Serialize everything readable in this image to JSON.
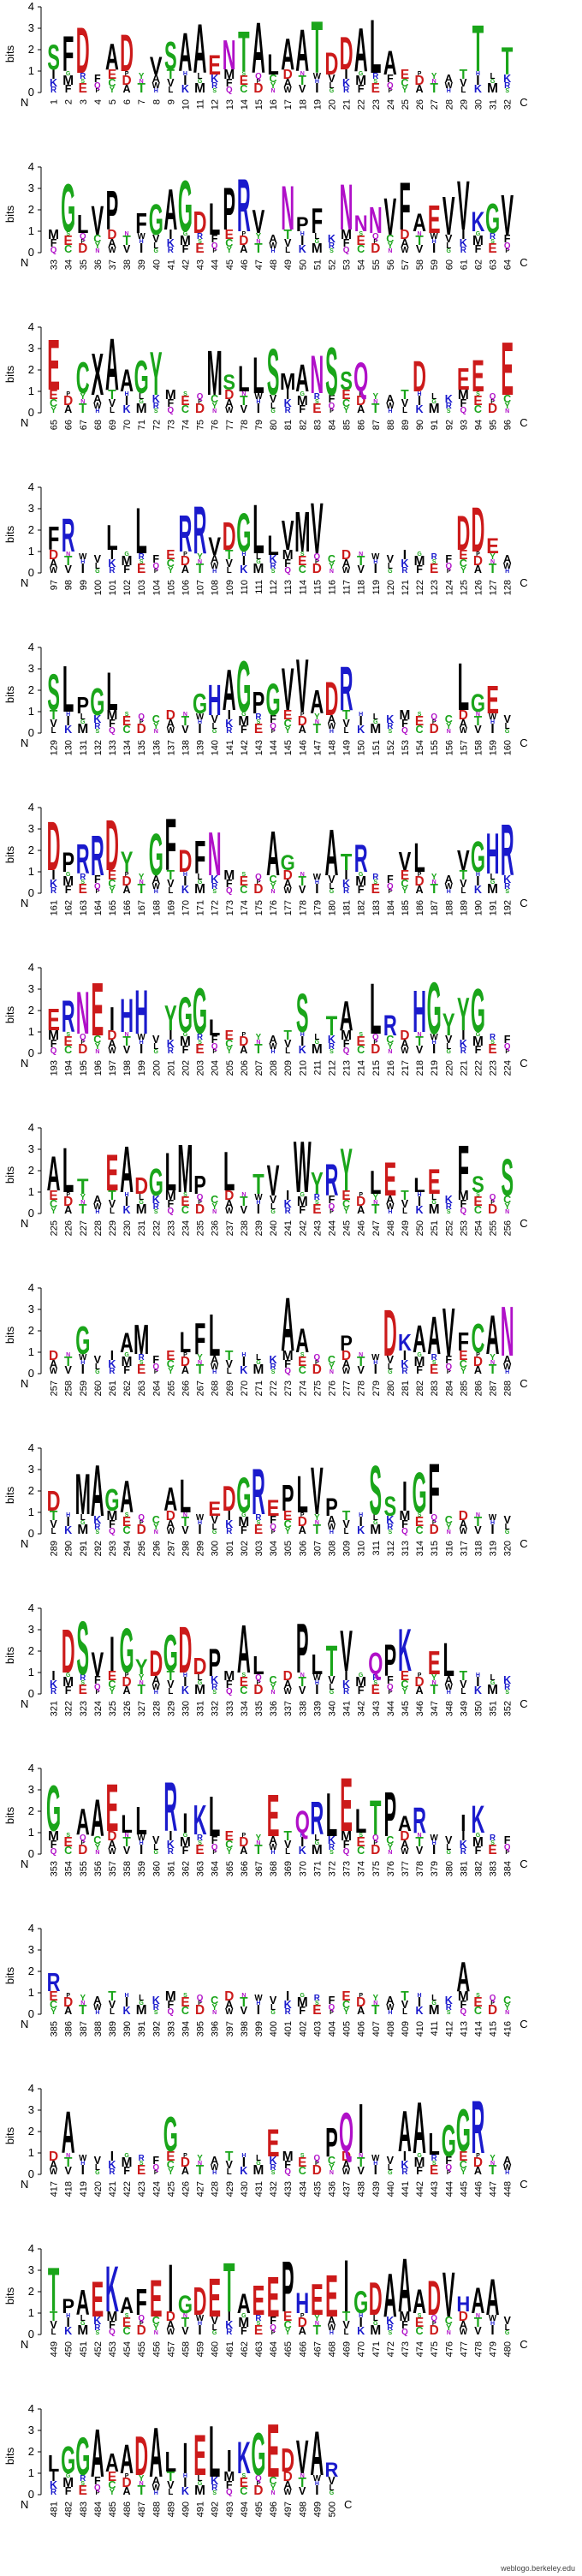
{
  "axis": {
    "ylabel": "bits",
    "yticks": [
      "0",
      "1",
      "2",
      "3",
      "4"
    ],
    "n_terminus": "N",
    "c_terminus": "C"
  },
  "credit": "weblogo.berkeley.edu",
  "colors": {
    "green": "#1aa51a",
    "blue": "#1a1acc",
    "red": "#cc1a1a",
    "black": "#000000",
    "purple": "#b010c8"
  },
  "rows": [
    {
      "start": 1,
      "end": 32,
      "letters": {
        "1": "S",
        "2": "F",
        "3": "D",
        "5": "A",
        "6": "D",
        "8": "V",
        "9": "S",
        "10": "A",
        "11": "A",
        "12": "E",
        "13": "N",
        "14": "T",
        "15": "A",
        "16": "L",
        "17": "A",
        "18": "A",
        "19": "T",
        "20": "D",
        "21": "D",
        "22": "A",
        "23": "L",
        "24": "A",
        "30": "T",
        "32": "T"
      }
    },
    {
      "start": 33,
      "end": 64,
      "letters": {
        "34": "G",
        "35": "L",
        "36": "V",
        "37": "P",
        "39": "F",
        "40": "G",
        "41": "A",
        "42": "G",
        "43": "D",
        "44": "L",
        "45": "P",
        "46": "R",
        "47": "V",
        "49": "N",
        "50": "P",
        "51": "F",
        "53": "N",
        "54": "N",
        "55": "N",
        "56": "V",
        "57": "F",
        "58": "A",
        "59": "E",
        "60": "V",
        "61": "V",
        "62": "K",
        "63": "G",
        "64": "V"
      }
    },
    {
      "start": 65,
      "end": 96,
      "letters": {
        "65": "E",
        "67": "C",
        "68": "X",
        "69": "A",
        "70": "A",
        "71": "G",
        "72": "Y",
        "76": "M",
        "77": "S",
        "78": "L",
        "79": "L",
        "80": "S",
        "81": "M",
        "82": "A",
        "83": "N",
        "84": "S",
        "85": "S",
        "86": "Q",
        "90": "D",
        "93": "E",
        "94": "E",
        "96": "E"
      }
    },
    {
      "start": 97,
      "end": 128,
      "letters": {
        "97": "F",
        "98": "R",
        "101": "L",
        "103": "L",
        "106": "R",
        "107": "R",
        "108": "V",
        "109": "D",
        "110": "G",
        "111": "L",
        "112": "L",
        "113": "V",
        "114": "M",
        "115": "V",
        "125": "D",
        "126": "D",
        "127": "E"
      }
    },
    {
      "start": 129,
      "end": 160,
      "letters": {
        "129": "S",
        "130": "L",
        "131": "P",
        "132": "G",
        "133": "L",
        "139": "G",
        "140": "H",
        "141": "A",
        "142": "G",
        "143": "P",
        "144": "G",
        "145": "V",
        "146": "V",
        "147": "A",
        "148": "D",
        "149": "R",
        "157": "L",
        "158": "G",
        "159": "E"
      }
    },
    {
      "start": 161,
      "end": 192,
      "letters": {
        "161": "D",
        "162": "P",
        "163": "R",
        "164": "R",
        "165": "D",
        "166": "Y",
        "168": "G",
        "169": "F",
        "170": "D",
        "171": "F",
        "172": "N",
        "176": "A",
        "177": "G",
        "180": "A",
        "181": "T",
        "182": "R",
        "185": "V",
        "186": "L",
        "189": "V",
        "190": "G",
        "191": "H",
        "192": "R"
      }
    },
    {
      "start": 193,
      "end": 224,
      "letters": {
        "193": "E",
        "194": "R",
        "195": "N",
        "196": "E",
        "197": "I",
        "198": "H",
        "199": "H",
        "201": "Y",
        "202": "G",
        "203": "G",
        "204": "L",
        "210": "S",
        "212": "T",
        "213": "A",
        "215": "L",
        "216": "R",
        "218": "H",
        "219": "G",
        "220": "Y",
        "221": "Y",
        "222": "G"
      }
    },
    {
      "start": 225,
      "end": 256,
      "letters": {
        "225": "A",
        "226": "L",
        "227": "T",
        "229": "E",
        "230": "A",
        "231": "D",
        "232": "G",
        "233": "L",
        "234": "M",
        "235": "P",
        "237": "L",
        "239": "T",
        "240": "V",
        "242": "W",
        "243": "Y",
        "244": "R",
        "245": "Y",
        "247": "L",
        "248": "E",
        "250": "L",
        "251": "E",
        "253": "F",
        "254": "S",
        "256": "S"
      }
    },
    {
      "start": 257,
      "end": 288,
      "letters": {
        "259": "G",
        "262": "A",
        "263": "M",
        "266": "L",
        "267": "F",
        "268": "L",
        "273": "A",
        "274": "A",
        "277": "P",
        "280": "D",
        "281": "K",
        "282": "A",
        "283": "A",
        "284": "V",
        "285": "F",
        "286": "C",
        "287": "A",
        "288": "N"
      }
    },
    {
      "start": 289,
      "end": 320,
      "letters": {
        "289": "D",
        "291": "M",
        "292": "A",
        "293": "G",
        "294": "A",
        "297": "A",
        "298": "L",
        "300": "E",
        "301": "D",
        "302": "G",
        "303": "R",
        "304": "E",
        "305": "P",
        "306": "L",
        "307": "V",
        "308": "P",
        "311": "S",
        "312": "S",
        "313": "I",
        "314": "G",
        "315": "F"
      }
    },
    {
      "start": 321,
      "end": 352,
      "letters": {
        "322": "D",
        "323": "S",
        "324": "V",
        "325": "I",
        "326": "G",
        "327": "Y",
        "328": "D",
        "329": "G",
        "330": "D",
        "331": "D",
        "332": "P",
        "334": "A",
        "335": "L",
        "338": "P",
        "339": "L",
        "340": "T",
        "341": "V",
        "343": "Q",
        "344": "P",
        "345": "K",
        "347": "E",
        "348": "L"
      }
    },
    {
      "start": 353,
      "end": 384,
      "letters": {
        "353": "G",
        "355": "A",
        "356": "A",
        "357": "E",
        "358": "L",
        "359": "L",
        "361": "R",
        "362": "I",
        "363": "K",
        "364": "L",
        "368": "E",
        "370": "Q",
        "371": "R",
        "372": "L",
        "373": "E",
        "374": "L",
        "375": "T",
        "376": "P",
        "377": "A",
        "378": "R",
        "381": "I",
        "382": "K"
      }
    },
    {
      "start": 385,
      "end": 416,
      "letters": {
        "385": "R",
        "413": "A"
      }
    },
    {
      "start": 417,
      "end": 448,
      "letters": {
        "418": "A",
        "425": "G",
        "432": "E",
        "436": "P",
        "437": "Q",
        "438": "I",
        "441": "A",
        "442": "A",
        "443": "L",
        "444": "G",
        "445": "G",
        "446": "R"
      }
    },
    {
      "start": 449,
      "end": 480,
      "letters": {
        "449": "T",
        "450": "P",
        "451": "A",
        "452": "E",
        "453": "K",
        "454": "A",
        "455": "F",
        "456": "E",
        "457": "I",
        "458": "G",
        "459": "D",
        "460": "E",
        "461": "T",
        "462": "A",
        "463": "E",
        "464": "E",
        "465": "P",
        "466": "H",
        "467": "E",
        "468": "E",
        "469": "I",
        "470": "G",
        "471": "D",
        "472": "A",
        "473": "A",
        "474": "A",
        "475": "D",
        "476": "V",
        "477": "H",
        "478": "A",
        "479": "A"
      }
    },
    {
      "start": 481,
      "end": 500,
      "letters": {
        "481": "L",
        "482": "G",
        "483": "G",
        "484": "A",
        "485": "A",
        "486": "A",
        "487": "D",
        "488": "A",
        "489": "L",
        "490": "I",
        "491": "E",
        "492": "L",
        "493": "I",
        "494": "K",
        "495": "G",
        "496": "E",
        "497": "D",
        "498": "V",
        "499": "A",
        "500": "R"
      }
    }
  ]
}
